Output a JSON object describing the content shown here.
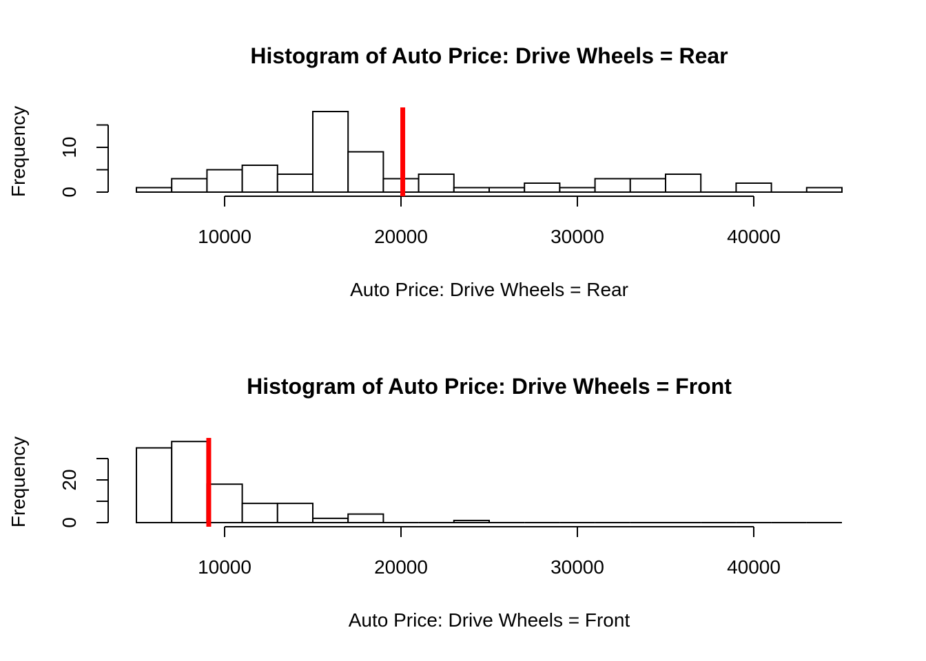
{
  "chart_data": [
    {
      "type": "bar",
      "title": "Histogram of Auto Price: Drive Wheels = Rear",
      "xlabel": "Auto Price: Drive Wheels = Rear",
      "ylabel": "Frequency",
      "xlim": [
        5000,
        45000
      ],
      "bin_width": 2000,
      "bin_start": 5000,
      "counts": [
        1,
        3,
        5,
        6,
        4,
        18,
        9,
        3,
        4,
        1,
        1,
        2,
        1,
        3,
        3,
        4,
        0,
        2,
        0,
        1
      ],
      "xticks": [
        10000,
        20000,
        30000,
        40000
      ],
      "yticks": [
        0,
        10
      ],
      "ymax_axis": 15,
      "mean_line": 20100,
      "mean_line_color": "#ff0000"
    },
    {
      "type": "bar",
      "title": "Histogram of Auto Price: Drive Wheels = Front",
      "xlabel": "Auto Price: Drive Wheels = Front",
      "ylabel": "Frequency",
      "xlim": [
        5000,
        45000
      ],
      "bin_width": 2000,
      "bin_start": 5000,
      "counts": [
        35,
        38,
        18,
        9,
        9,
        2,
        4,
        0,
        0,
        1,
        0,
        0,
        0,
        0,
        0,
        0,
        0,
        0,
        0,
        0
      ],
      "xticks": [
        10000,
        20000,
        30000,
        40000
      ],
      "yticks": [
        0,
        20
      ],
      "ymax_axis": 30,
      "mean_line": 9100,
      "mean_line_color": "#ff0000"
    }
  ]
}
